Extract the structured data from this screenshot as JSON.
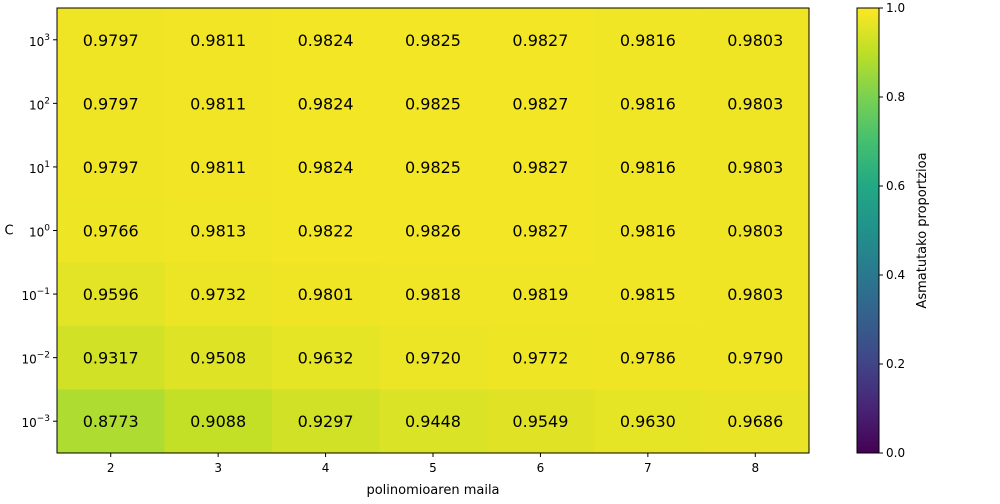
{
  "chart_data": {
    "type": "heatmap",
    "title": "",
    "xlabel": "polinomioaren maila",
    "ylabel": "C",
    "x_categories": [
      "2",
      "3",
      "4",
      "5",
      "6",
      "7",
      "8"
    ],
    "y_categories": [
      {
        "base": "10",
        "exp": "3",
        "value": 1000
      },
      {
        "base": "10",
        "exp": "2",
        "value": 100
      },
      {
        "base": "10",
        "exp": "1",
        "value": 10
      },
      {
        "base": "10",
        "exp": "0",
        "value": 1
      },
      {
        "base": "10",
        "exp": "−1",
        "value": 0.1
      },
      {
        "base": "10",
        "exp": "−2",
        "value": 0.01
      },
      {
        "base": "10",
        "exp": "−3",
        "value": 0.001
      }
    ],
    "values": [
      [
        0.9797,
        0.9811,
        0.9824,
        0.9825,
        0.9827,
        0.9816,
        0.9803
      ],
      [
        0.9797,
        0.9811,
        0.9824,
        0.9825,
        0.9827,
        0.9816,
        0.9803
      ],
      [
        0.9797,
        0.9811,
        0.9824,
        0.9825,
        0.9827,
        0.9816,
        0.9803
      ],
      [
        0.9766,
        0.9813,
        0.9822,
        0.9826,
        0.9827,
        0.9816,
        0.9803
      ],
      [
        0.9596,
        0.9732,
        0.9801,
        0.9818,
        0.9819,
        0.9815,
        0.9803
      ],
      [
        0.9317,
        0.9508,
        0.9632,
        0.972,
        0.9772,
        0.9786,
        0.979
      ],
      [
        0.8773,
        0.9088,
        0.9297,
        0.9448,
        0.9549,
        0.963,
        0.9686
      ]
    ],
    "cell_labels": [
      [
        "0.9797",
        "0.9811",
        "0.9824",
        "0.9825",
        "0.9827",
        "0.9816",
        "0.9803"
      ],
      [
        "0.9797",
        "0.9811",
        "0.9824",
        "0.9825",
        "0.9827",
        "0.9816",
        "0.9803"
      ],
      [
        "0.9797",
        "0.9811",
        "0.9824",
        "0.9825",
        "0.9827",
        "0.9816",
        "0.9803"
      ],
      [
        "0.9766",
        "0.9813",
        "0.9822",
        "0.9826",
        "0.9827",
        "0.9816",
        "0.9803"
      ],
      [
        "0.9596",
        "0.9732",
        "0.9801",
        "0.9818",
        "0.9819",
        "0.9815",
        "0.9803"
      ],
      [
        "0.9317",
        "0.9508",
        "0.9632",
        "0.9720",
        "0.9772",
        "0.9786",
        "0.9790"
      ],
      [
        "0.8773",
        "0.9088",
        "0.9297",
        "0.9448",
        "0.9549",
        "0.9630",
        "0.9686"
      ]
    ],
    "colormap": "viridis",
    "vmin": 0.0,
    "vmax": 1.0,
    "colorbar": {
      "label": "Asmatutako proportzioa",
      "ticks": [
        "0.0",
        "0.2",
        "0.4",
        "0.6",
        "0.8",
        "1.0"
      ],
      "tick_values": [
        0.0,
        0.2,
        0.4,
        0.6,
        0.8,
        1.0
      ],
      "placement": "right"
    },
    "grid": false,
    "colors": {
      "text": "#000000",
      "axis": "#000000",
      "background": "#ffffff"
    }
  }
}
